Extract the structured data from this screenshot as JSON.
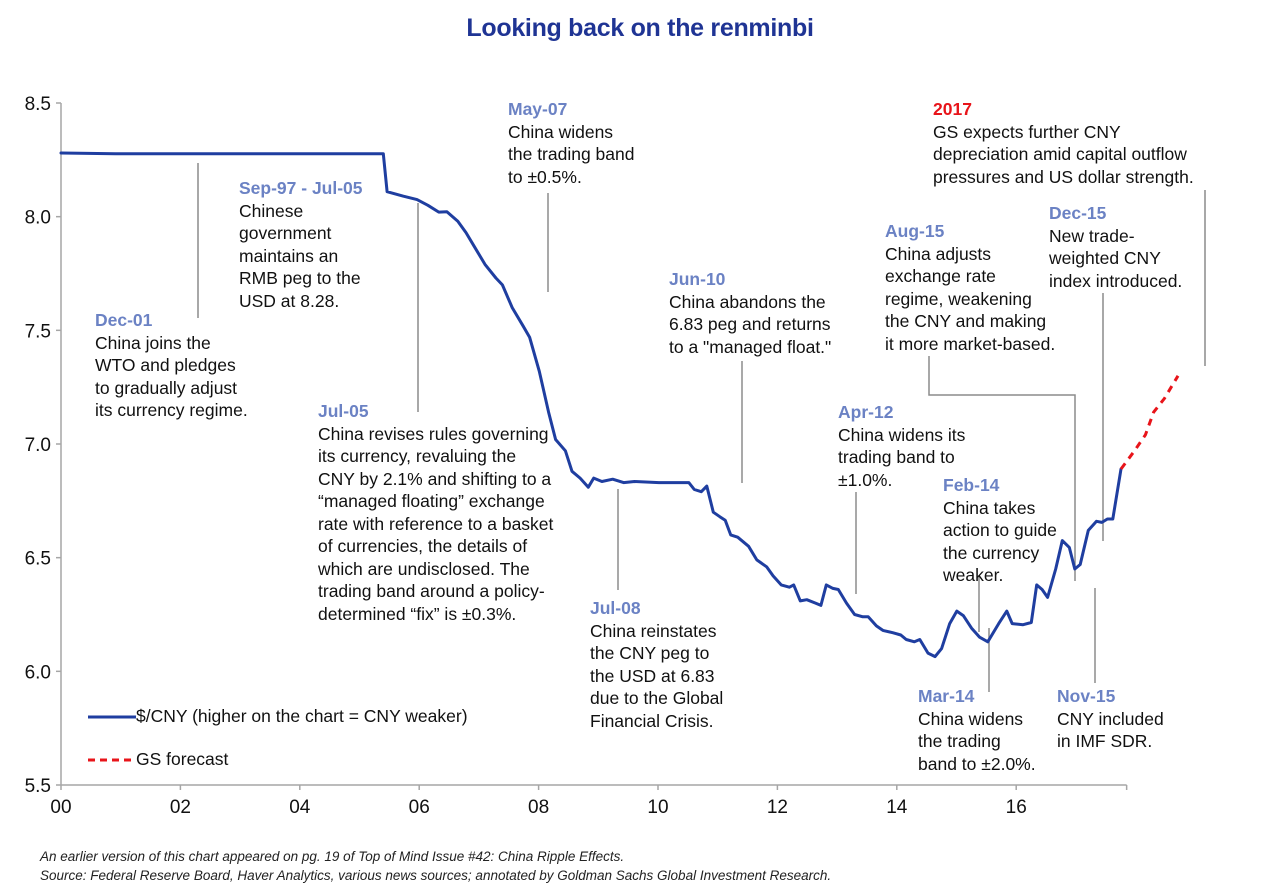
{
  "chart_data": {
    "type": "line",
    "title": "Looking back on the renminbi",
    "xlabel": "",
    "ylabel": "",
    "x_ticks": [
      "00",
      "02",
      "04",
      "06",
      "08",
      "10",
      "12",
      "14",
      "16"
    ],
    "x_tick_years": [
      0,
      2,
      4,
      6,
      8,
      10,
      12,
      14,
      16
    ],
    "x_range": [
      0,
      17.85
    ],
    "y_ticks": [
      "5.5",
      "6.0",
      "6.5",
      "7.0",
      "7.5",
      "8.0",
      "8.5"
    ],
    "y_tick_values": [
      5.5,
      6.0,
      6.5,
      7.0,
      7.5,
      8.0,
      8.5
    ],
    "ylim": [
      5.5,
      8.5
    ],
    "grid": false,
    "legend_position": "bottom-left",
    "series": [
      {
        "name": "$/CNY (higher on the chart = CNY weaker)",
        "color": "#1f3ea0",
        "style": "solid",
        "points": [
          [
            0.0,
            8.28
          ],
          [
            1.0,
            8.277
          ],
          [
            2.0,
            8.277
          ],
          [
            3.0,
            8.277
          ],
          [
            4.0,
            8.277
          ],
          [
            5.0,
            8.277
          ],
          [
            5.93,
            8.277
          ],
          [
            6.0,
            8.11
          ],
          [
            6.3,
            8.09
          ],
          [
            6.55,
            8.075
          ],
          [
            6.75,
            8.05
          ],
          [
            6.95,
            8.02
          ],
          [
            7.1,
            8.022
          ],
          [
            7.3,
            7.98
          ],
          [
            7.45,
            7.93
          ],
          [
            7.6,
            7.87
          ],
          [
            7.8,
            7.79
          ],
          [
            8.0,
            7.73
          ],
          [
            8.12,
            7.7
          ],
          [
            8.3,
            7.6
          ],
          [
            8.5,
            7.52
          ],
          [
            8.62,
            7.47
          ],
          [
            8.8,
            7.32
          ],
          [
            8.97,
            7.14
          ],
          [
            9.1,
            7.02
          ],
          [
            9.28,
            6.97
          ],
          [
            9.4,
            6.88
          ],
          [
            9.55,
            6.85
          ],
          [
            9.7,
            6.81
          ],
          [
            9.8,
            6.85
          ],
          [
            9.95,
            6.835
          ],
          [
            10.15,
            6.845
          ],
          [
            10.35,
            6.83
          ],
          [
            10.55,
            6.835
          ],
          [
            11.0,
            6.83
          ],
          [
            11.55,
            6.83
          ],
          [
            11.65,
            6.8
          ],
          [
            11.78,
            6.79
          ],
          [
            11.88,
            6.815
          ],
          [
            12.0,
            6.7
          ],
          [
            12.12,
            6.68
          ],
          [
            12.22,
            6.665
          ],
          [
            12.32,
            6.6
          ],
          [
            12.45,
            6.59
          ],
          [
            12.65,
            6.55
          ],
          [
            12.8,
            6.49
          ],
          [
            12.98,
            6.46
          ],
          [
            13.1,
            6.42
          ],
          [
            13.25,
            6.38
          ],
          [
            13.4,
            6.37
          ],
          [
            13.48,
            6.38
          ],
          [
            13.6,
            6.31
          ],
          [
            13.72,
            6.315
          ],
          [
            13.88,
            6.3
          ],
          [
            13.98,
            6.29
          ],
          [
            14.08,
            6.38
          ],
          [
            14.2,
            6.365
          ],
          [
            14.3,
            6.36
          ],
          [
            14.45,
            6.3
          ],
          [
            14.6,
            6.25
          ],
          [
            14.75,
            6.24
          ],
          [
            14.85,
            6.24
          ],
          [
            15.0,
            6.2
          ],
          [
            15.12,
            6.18
          ],
          [
            15.3,
            6.17
          ],
          [
            15.45,
            6.16
          ],
          [
            15.55,
            6.14
          ],
          [
            15.7,
            6.13
          ],
          [
            15.8,
            6.14
          ],
          [
            15.95,
            6.08
          ],
          [
            16.08,
            6.065
          ],
          [
            16.2,
            6.1
          ],
          [
            16.35,
            6.21
          ],
          [
            16.48,
            6.265
          ],
          [
            16.6,
            6.245
          ],
          [
            16.75,
            6.19
          ],
          [
            16.9,
            6.15
          ],
          [
            17.05,
            6.13
          ],
          [
            17.25,
            6.21
          ],
          [
            17.4,
            6.265
          ],
          [
            17.5,
            6.21
          ],
          [
            17.7,
            6.205
          ],
          [
            17.85,
            6.215
          ],
          [
            17.95,
            6.38
          ],
          [
            18.05,
            6.36
          ],
          [
            18.15,
            6.325
          ],
          [
            18.3,
            6.45
          ],
          [
            18.42,
            6.575
          ],
          [
            18.55,
            6.545
          ],
          [
            18.65,
            6.45
          ],
          [
            18.75,
            6.47
          ],
          [
            18.9,
            6.62
          ],
          [
            19.05,
            6.66
          ],
          [
            19.15,
            6.655
          ],
          [
            19.25,
            6.67
          ],
          [
            19.35,
            6.67
          ],
          [
            19.5,
            6.89
          ]
        ]
      },
      {
        "name": "GS forecast",
        "color": "#e8141a",
        "style": "dashed",
        "points": [
          [
            19.5,
            6.89
          ],
          [
            19.75,
            6.97
          ],
          [
            19.95,
            7.04
          ],
          [
            20.1,
            7.14
          ],
          [
            20.3,
            7.2
          ],
          [
            20.55,
            7.3
          ]
        ]
      }
    ],
    "annotations": [
      {
        "date": "Dec-01",
        "lines": [
          "China joins the",
          "WTO and pledges",
          "to gradually adjust",
          "its currency regime."
        ]
      },
      {
        "date": "Sep-97 - Jul-05",
        "lines": [
          "Chinese",
          "government",
          "maintains an",
          "RMB peg to the",
          "USD at 8.28."
        ]
      },
      {
        "date": "May-07",
        "lines": [
          "China widens",
          "the trading band",
          "to ±0.5%."
        ]
      },
      {
        "date": "Jul-05",
        "lines": [
          "China revises rules governing",
          "its currency, revaluing the",
          "CNY by 2.1% and shifting to a",
          "“managed floating” exchange",
          "rate with reference to a basket",
          "of currencies, the details of",
          "which are undisclosed. The",
          "trading band around a policy-",
          "determined “fix” is ±0.3%."
        ]
      },
      {
        "date": "Jul-08",
        "lines": [
          "China reinstates",
          "the CNY peg to",
          "the USD at 6.83",
          "due to the Global",
          "Financial Crisis."
        ]
      },
      {
        "date": "Jun-10",
        "lines": [
          "China abandons the",
          "6.83 peg and returns",
          "to a \"managed float.\""
        ]
      },
      {
        "date": "Apr-12",
        "lines": [
          "China widens its",
          "trading band to",
          "±1.0%."
        ]
      },
      {
        "date": "Feb-14",
        "lines": [
          "China takes",
          "action to guide",
          "the currency",
          "weaker."
        ]
      },
      {
        "date": "Mar-14",
        "lines": [
          "China widens",
          "the trading",
          "band to ±2.0%."
        ]
      },
      {
        "date": "Aug-15",
        "lines": [
          "China adjusts",
          "exchange rate",
          "regime, weakening",
          "the CNY and making",
          "it more market-based."
        ]
      },
      {
        "date": "Dec-15",
        "lines": [
          "New trade-",
          "weighted CNY",
          "index introduced."
        ]
      },
      {
        "date": "Nov-15",
        "lines": [
          "CNY included",
          "in IMF SDR."
        ]
      },
      {
        "date": "2017",
        "lines": [
          "GS expects further CNY",
          "depreciation amid capital outflow",
          "pressures and US dollar strength."
        ]
      }
    ]
  },
  "legend": {
    "items": [
      {
        "label": "$/CNY (higher on the chart = CNY weaker)",
        "color": "#1f3ea0",
        "style": "solid"
      },
      {
        "label": "GS forecast",
        "color": "#e8141a",
        "style": "dashed"
      }
    ]
  },
  "footnotes": [
    "An earlier version of this chart appeared on pg. 19 of Top of Mind Issue #42: China Ripple Effects.",
    "Source: Federal Reserve Board, Haver Analytics, various news sources; annotated by Goldman Sachs Global Investment Research."
  ]
}
